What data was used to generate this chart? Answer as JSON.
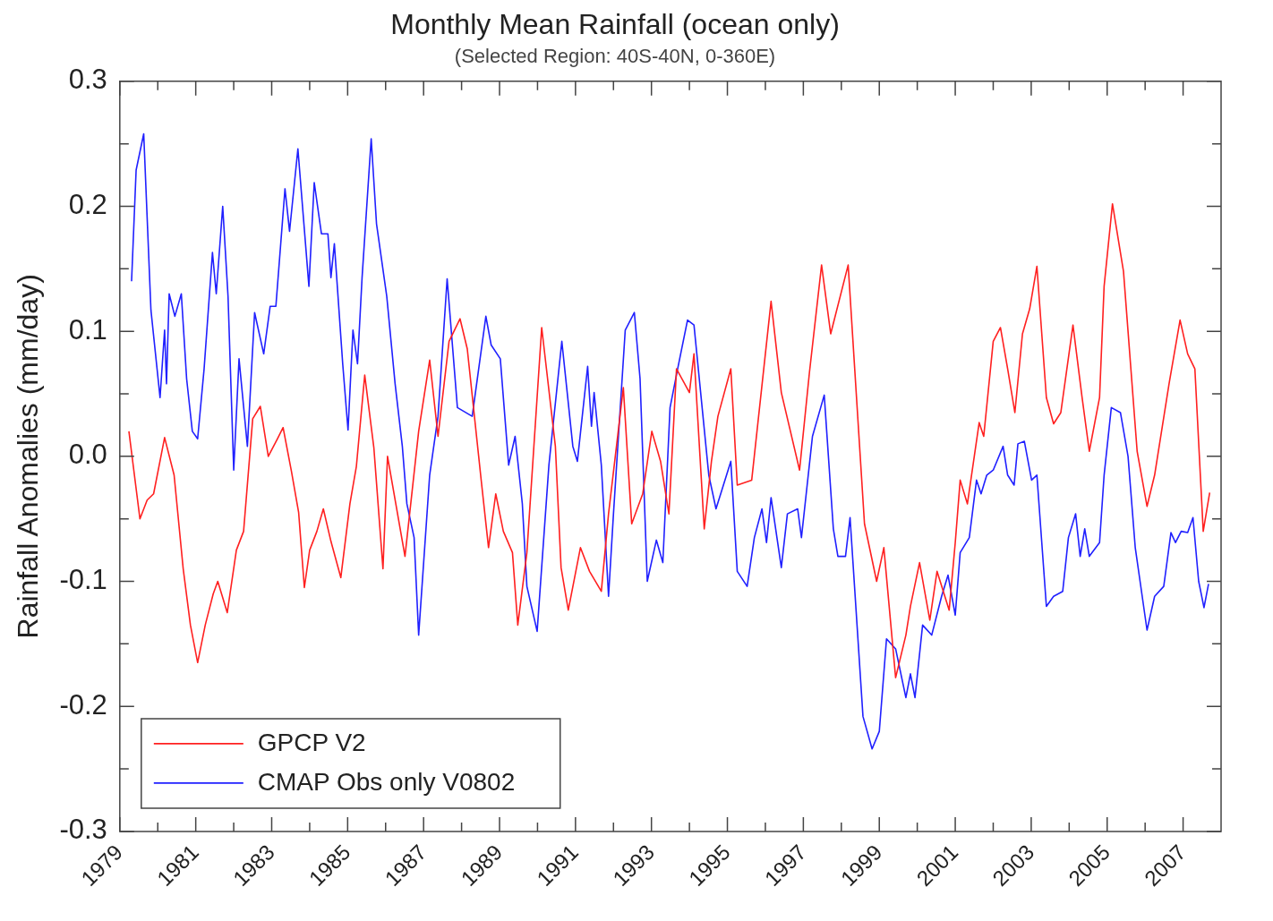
{
  "chart_data": {
    "type": "line",
    "title": "Monthly Mean Rainfall (ocean only)",
    "subtitle": "(Selected Region: 40S-40N, 0-360E)",
    "ylabel": "Rainfall Anomalies (mm/day)",
    "xlim": [
      1979,
      2008
    ],
    "xticks": [
      1979,
      {
        "value": 1980,
        "label": null
      },
      1981,
      {
        "value": 1982,
        "label": null
      },
      1983,
      {
        "value": 1984,
        "label": null
      },
      1985,
      {
        "value": 1986,
        "label": null
      },
      1987,
      {
        "value": 1988,
        "label": null
      },
      1989,
      {
        "value": 1990,
        "label": null
      },
      1991,
      {
        "value": 1992,
        "label": null
      },
      1993,
      {
        "value": 1994,
        "label": null
      },
      1995,
      {
        "value": 1996,
        "label": null
      },
      1997,
      {
        "value": 1998,
        "label": null
      },
      1999,
      {
        "value": 2000,
        "label": null
      },
      2001,
      {
        "value": 2002,
        "label": null
      },
      2003,
      {
        "value": 2004,
        "label": null
      },
      2005,
      {
        "value": 2006,
        "label": null
      },
      2007
    ],
    "ylim": [
      -0.3,
      0.3
    ],
    "yticks": [
      -0.3,
      {
        "value": -0.25,
        "label": null
      },
      -0.2,
      {
        "value": -0.15,
        "label": null
      },
      -0.1,
      {
        "value": -0.05,
        "label": null
      },
      {
        "value": 0,
        "label": "0.0"
      },
      {
        "value": 0.05,
        "label": null
      },
      0.1,
      {
        "value": 0.15,
        "label": null
      },
      0.2,
      {
        "value": 0.25,
        "label": null
      },
      0.3
    ],
    "legend": "bottom left",
    "marker": "none",
    "line_style": "solid",
    "series": [
      {
        "name": "GPCP V2",
        "color": "#ff2020",
        "x": [
          1979.24,
          1979.53,
          1979.72,
          1979.89,
          1980.18,
          1980.43,
          1980.67,
          1980.86,
          1981.05,
          1981.25,
          1981.46,
          1981.58,
          1981.83,
          1982.07,
          1982.26,
          1982.5,
          1982.7,
          1982.91,
          1983.15,
          1983.3,
          1983.52,
          1983.71,
          1983.86,
          1984.0,
          1984.19,
          1984.36,
          1984.56,
          1984.82,
          1985.06,
          1985.23,
          1985.45,
          1985.69,
          1985.93,
          1986.05,
          1986.51,
          1986.87,
          1987.16,
          1987.38,
          1987.67,
          1987.96,
          1988.15,
          1988.52,
          1988.71,
          1988.9,
          1989.1,
          1989.34,
          1989.48,
          1989.72,
          1990.11,
          1990.47,
          1990.62,
          1990.81,
          1991.13,
          1991.37,
          1991.68,
          1991.87,
          1992.26,
          1992.48,
          1992.77,
          1993.01,
          1993.24,
          1993.46,
          1993.66,
          1994.0,
          1994.12,
          1994.39,
          1994.58,
          1994.75,
          1995.09,
          1995.26,
          1995.64,
          1996.15,
          1996.42,
          1996.9,
          1997.16,
          1997.48,
          1997.72,
          1998.18,
          1998.61,
          1998.93,
          1999.12,
          1999.43,
          1999.7,
          1999.82,
          2000.06,
          2000.33,
          2000.52,
          2000.84,
          2001.0,
          2001.13,
          2001.32,
          2001.63,
          2001.75,
          2002.0,
          2002.19,
          2002.38,
          2002.57,
          2002.77,
          2002.96,
          2003.15,
          2003.4,
          2003.59,
          2003.78,
          2004.1,
          2004.34,
          2004.53,
          2004.8,
          2004.92,
          2005.14,
          2005.43,
          2005.79,
          2006.05,
          2006.25,
          2006.63,
          2006.92,
          2007.12,
          2007.31,
          2007.53,
          2007.7
        ],
        "values": [
          0.02,
          -0.05,
          -0.035,
          -0.03,
          0.015,
          -0.015,
          -0.09,
          -0.135,
          -0.165,
          -0.135,
          -0.11,
          -0.1,
          -0.125,
          -0.075,
          -0.06,
          0.03,
          0.04,
          0.0,
          0.014,
          0.023,
          -0.012,
          -0.045,
          -0.105,
          -0.075,
          -0.06,
          -0.042,
          -0.068,
          -0.097,
          -0.038,
          -0.008,
          0.065,
          0.007,
          -0.09,
          0.0,
          -0.08,
          0.02,
          0.077,
          0.016,
          0.092,
          0.11,
          0.086,
          -0.02,
          -0.073,
          -0.03,
          -0.06,
          -0.077,
          -0.135,
          -0.077,
          0.103,
          0.008,
          -0.089,
          -0.123,
          -0.073,
          -0.092,
          -0.108,
          -0.046,
          0.055,
          -0.054,
          -0.03,
          0.02,
          -0.004,
          -0.046,
          0.07,
          0.051,
          0.082,
          -0.058,
          -0.004,
          0.032,
          0.07,
          -0.023,
          -0.019,
          0.124,
          0.051,
          -0.011,
          0.067,
          0.153,
          0.098,
          0.153,
          -0.054,
          -0.1,
          -0.073,
          -0.177,
          -0.143,
          -0.12,
          -0.085,
          -0.131,
          -0.092,
          -0.123,
          -0.069,
          -0.019,
          -0.038,
          0.027,
          0.016,
          0.092,
          0.103,
          0.07,
          0.035,
          0.098,
          0.118,
          0.152,
          0.047,
          0.026,
          0.035,
          0.105,
          0.047,
          0.004,
          0.047,
          0.136,
          0.202,
          0.148,
          0.004,
          -0.04,
          -0.015,
          0.058,
          0.109,
          0.082,
          0.07,
          -0.06,
          -0.029
        ]
      },
      {
        "name": "CMAP Obs only V0802",
        "color": "#2020ff",
        "x": [
          1979.31,
          1979.43,
          1979.63,
          1979.82,
          1980.06,
          1980.18,
          1980.23,
          1980.3,
          1980.45,
          1980.62,
          1980.76,
          1980.91,
          1981.05,
          1981.22,
          1981.44,
          1981.54,
          1981.71,
          1981.85,
          1982.0,
          1982.14,
          1982.36,
          1982.55,
          1982.79,
          1982.96,
          1983.11,
          1983.35,
          1983.47,
          1983.69,
          1983.98,
          1984.12,
          1984.31,
          1984.48,
          1984.56,
          1984.65,
          1984.87,
          1985.01,
          1985.14,
          1985.26,
          1985.38,
          1985.62,
          1985.76,
          1986.03,
          1986.25,
          1986.44,
          1986.56,
          1986.75,
          1986.87,
          1987.16,
          1987.38,
          1987.62,
          1987.89,
          1988.28,
          1988.64,
          1988.78,
          1989.02,
          1989.24,
          1989.41,
          1989.6,
          1989.72,
          1989.99,
          1990.3,
          1990.64,
          1990.93,
          1991.05,
          1991.32,
          1991.42,
          1991.49,
          1991.68,
          1991.87,
          1992.0,
          1992.31,
          1992.55,
          1992.7,
          1992.89,
          1993.13,
          1993.3,
          1993.49,
          1993.69,
          1993.95,
          1994.12,
          1994.51,
          1994.7,
          1995.09,
          1995.26,
          1995.52,
          1995.71,
          1995.91,
          1996.03,
          1996.15,
          1996.42,
          1996.58,
          1996.85,
          1996.95,
          1997.24,
          1997.55,
          1997.79,
          1997.91,
          1998.11,
          1998.23,
          1998.57,
          1998.81,
          1999.0,
          1999.19,
          1999.43,
          1999.7,
          1999.82,
          1999.94,
          2000.14,
          2000.38,
          2000.64,
          2000.81,
          2001.0,
          2001.13,
          2001.37,
          2001.56,
          2001.68,
          2001.83,
          2002.0,
          2002.26,
          2002.38,
          2002.55,
          2002.65,
          2002.82,
          2003.01,
          2003.15,
          2003.4,
          2003.59,
          2003.83,
          2003.98,
          2004.17,
          2004.29,
          2004.41,
          2004.53,
          2004.8,
          2004.92,
          2005.11,
          2005.35,
          2005.55,
          2005.74,
          2006.05,
          2006.25,
          2006.49,
          2006.68,
          2006.8,
          2006.95,
          2007.12,
          2007.26,
          2007.41,
          2007.55,
          2007.67
        ],
        "values": [
          0.14,
          0.229,
          0.258,
          0.117,
          0.047,
          0.101,
          0.058,
          0.13,
          0.112,
          0.13,
          0.062,
          0.02,
          0.014,
          0.07,
          0.163,
          0.13,
          0.2,
          0.128,
          -0.011,
          0.078,
          0.008,
          0.115,
          0.082,
          0.12,
          0.12,
          0.214,
          0.18,
          0.246,
          0.136,
          0.219,
          0.178,
          0.178,
          0.143,
          0.17,
          0.074,
          0.021,
          0.101,
          0.074,
          0.143,
          0.254,
          0.186,
          0.128,
          0.058,
          0.008,
          -0.038,
          -0.065,
          -0.143,
          -0.015,
          0.032,
          0.142,
          0.039,
          0.032,
          0.112,
          0.089,
          0.078,
          -0.007,
          0.016,
          -0.038,
          -0.104,
          -0.14,
          -0.007,
          0.092,
          0.008,
          -0.004,
          0.072,
          0.024,
          0.051,
          -0.007,
          -0.112,
          -0.046,
          0.101,
          0.115,
          0.062,
          -0.1,
          -0.067,
          -0.085,
          0.039,
          0.07,
          0.109,
          0.105,
          -0.015,
          -0.042,
          -0.004,
          -0.092,
          -0.104,
          -0.065,
          -0.042,
          -0.069,
          -0.033,
          -0.089,
          -0.046,
          -0.042,
          -0.065,
          0.016,
          0.049,
          -0.058,
          -0.08,
          -0.08,
          -0.049,
          -0.208,
          -0.234,
          -0.22,
          -0.146,
          -0.154,
          -0.193,
          -0.174,
          -0.193,
          -0.135,
          -0.143,
          -0.112,
          -0.095,
          -0.127,
          -0.077,
          -0.065,
          -0.019,
          -0.03,
          -0.015,
          -0.011,
          0.008,
          -0.015,
          -0.023,
          0.01,
          0.012,
          -0.019,
          -0.015,
          -0.12,
          -0.112,
          -0.108,
          -0.065,
          -0.046,
          -0.08,
          -0.058,
          -0.08,
          -0.069,
          -0.015,
          0.039,
          0.035,
          0.0,
          -0.073,
          -0.139,
          -0.112,
          -0.104,
          -0.061,
          -0.069,
          -0.06,
          -0.061,
          -0.049,
          -0.1,
          -0.121,
          -0.102
        ]
      }
    ]
  }
}
